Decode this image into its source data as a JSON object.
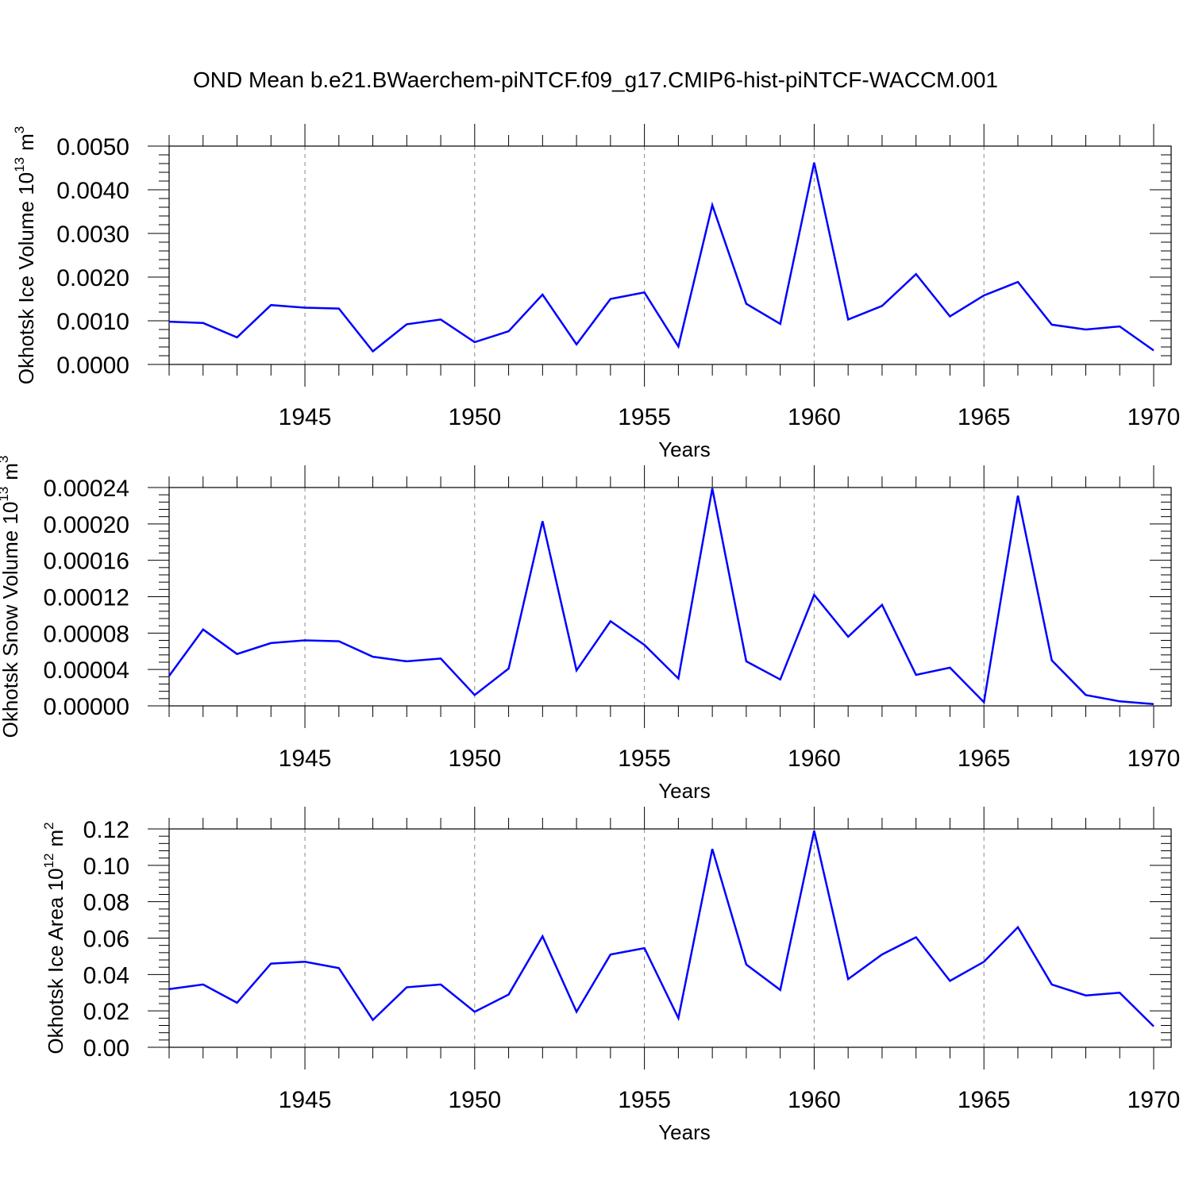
{
  "title": "OND Mean b.e21.BWaerchem-piNTCF.f09_g17.CMIP6-hist-piNTCF-WACCM.001",
  "line_color": "#0000ff",
  "chart_data": [
    {
      "type": "line",
      "ylabel": "Okhotsk Ice Volume 10",
      "ylabel_exp": "13",
      "ylabel_unit": "m",
      "ylabel_unit_exp": "3",
      "xlabel": "Years",
      "xlim": [
        1941,
        1970
      ],
      "ylim": [
        0.0,
        0.005
      ],
      "grid": "vertical dashed at major x ticks",
      "xticks": [
        1945,
        1950,
        1955,
        1960,
        1965,
        1970
      ],
      "xticklabels": [
        "1945",
        "1950",
        "1955",
        "1960",
        "1965",
        "1970"
      ],
      "yticks": [
        0.0,
        0.001,
        0.002,
        0.003,
        0.004,
        0.005
      ],
      "yticklabels": [
        "0.0000",
        "0.0010",
        "0.0020",
        "0.0030",
        "0.0040",
        "0.0050"
      ],
      "x": [
        1941,
        1942,
        1943,
        1944,
        1945,
        1946,
        1947,
        1948,
        1949,
        1950,
        1951,
        1952,
        1953,
        1954,
        1955,
        1956,
        1957,
        1958,
        1959,
        1960,
        1961,
        1962,
        1963,
        1964,
        1965,
        1966,
        1967,
        1968,
        1969,
        1970
      ],
      "series": [
        {
          "values": [
            0.00098,
            0.00095,
            0.00062,
            0.00136,
            0.0013,
            0.00128,
            0.0003,
            0.00092,
            0.00103,
            0.00051,
            0.00076,
            0.0016,
            0.00046,
            0.0015,
            0.00165,
            0.00041,
            0.00365,
            0.00139,
            0.00093,
            0.00462,
            0.00103,
            0.00134,
            0.00207,
            0.0011,
            0.00158,
            0.00189,
            0.00091,
            0.0008,
            0.00087,
            0.00032
          ]
        }
      ]
    },
    {
      "type": "line",
      "ylabel": "Okhotsk Snow Volume 10",
      "ylabel_exp": "13",
      "ylabel_unit": "m",
      "ylabel_unit_exp": "3",
      "xlabel": "Years",
      "xlim": [
        1941,
        1970
      ],
      "ylim": [
        0.0,
        0.00024
      ],
      "grid": "vertical dashed at major x ticks",
      "xticks": [
        1945,
        1950,
        1955,
        1960,
        1965,
        1970
      ],
      "xticklabels": [
        "1945",
        "1950",
        "1955",
        "1960",
        "1965",
        "1970"
      ],
      "yticks": [
        0.0,
        4e-05,
        8e-05,
        0.00012,
        0.00016,
        0.0002,
        0.00024
      ],
      "yticklabels": [
        "0.00000",
        "0.00004",
        "0.00008",
        "0.00012",
        "0.00016",
        "0.00020",
        "0.00024"
      ],
      "x": [
        1941,
        1942,
        1943,
        1944,
        1945,
        1946,
        1947,
        1948,
        1949,
        1950,
        1951,
        1952,
        1953,
        1954,
        1955,
        1956,
        1957,
        1958,
        1959,
        1960,
        1961,
        1962,
        1963,
        1964,
        1965,
        1966,
        1967,
        1968,
        1969,
        1970
      ],
      "series": [
        {
          "values": [
            3.3e-05,
            8.4e-05,
            5.7e-05,
            6.9e-05,
            7.2e-05,
            7.1e-05,
            5.4e-05,
            4.9e-05,
            5.2e-05,
            1.2e-05,
            4.1e-05,
            0.000203,
            3.9e-05,
            9.3e-05,
            6.7e-05,
            3e-05,
            0.000239,
            4.9e-05,
            2.9e-05,
            0.000122,
            7.6e-05,
            0.000111,
            3.4e-05,
            4.2e-05,
            4e-06,
            0.000231,
            5e-05,
            1.2e-05,
            5e-06,
            2e-06
          ]
        }
      ]
    },
    {
      "type": "line",
      "ylabel": "Okhotsk Ice Area 10",
      "ylabel_exp": "12",
      "ylabel_unit": "m",
      "ylabel_unit_exp": "2",
      "xlabel": "Years",
      "xlim": [
        1941,
        1970
      ],
      "ylim": [
        0.0,
        0.12
      ],
      "grid": "vertical dashed at major x ticks",
      "xticks": [
        1945,
        1950,
        1955,
        1960,
        1965,
        1970
      ],
      "xticklabels": [
        "1945",
        "1950",
        "1955",
        "1960",
        "1965",
        "1970"
      ],
      "yticks": [
        0.0,
        0.02,
        0.04,
        0.06,
        0.08,
        0.1,
        0.12
      ],
      "yticklabels": [
        "0.00",
        "0.02",
        "0.04",
        "0.06",
        "0.08",
        "0.10",
        "0.12"
      ],
      "x": [
        1941,
        1942,
        1943,
        1944,
        1945,
        1946,
        1947,
        1948,
        1949,
        1950,
        1951,
        1952,
        1953,
        1954,
        1955,
        1956,
        1957,
        1958,
        1959,
        1960,
        1961,
        1962,
        1963,
        1964,
        1965,
        1966,
        1967,
        1968,
        1969,
        1970
      ],
      "series": [
        {
          "values": [
            0.032,
            0.0345,
            0.0245,
            0.046,
            0.047,
            0.0435,
            0.015,
            0.033,
            0.0345,
            0.0195,
            0.029,
            0.061,
            0.0195,
            0.051,
            0.0545,
            0.016,
            0.109,
            0.0455,
            0.0315,
            0.119,
            0.0375,
            0.051,
            0.0605,
            0.0365,
            0.047,
            0.066,
            0.0345,
            0.0285,
            0.03,
            0.0115
          ]
        }
      ]
    }
  ]
}
